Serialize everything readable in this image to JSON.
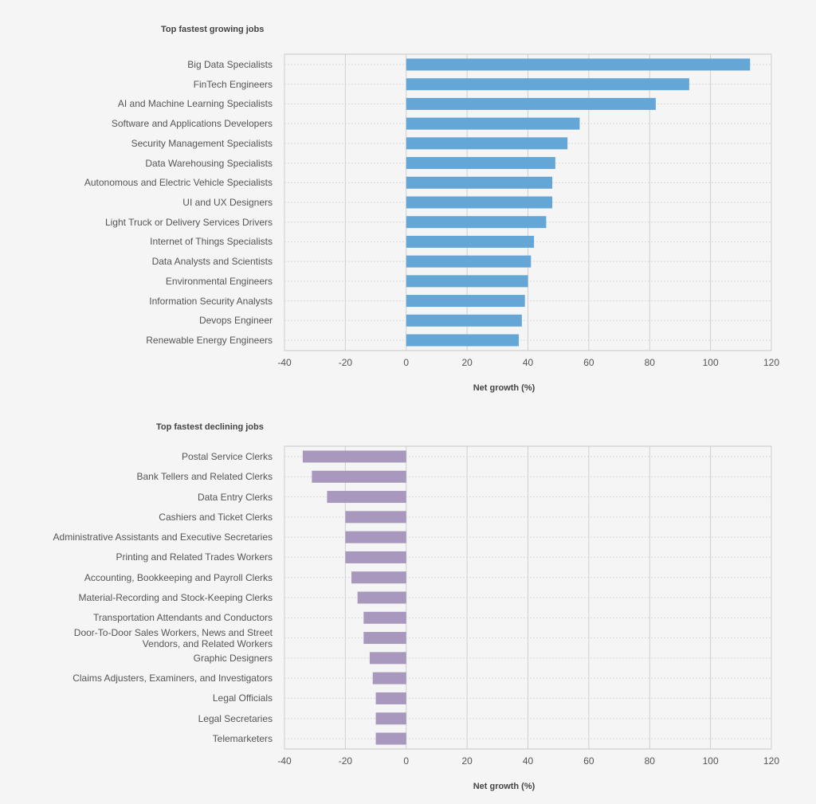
{
  "chart_data": [
    {
      "type": "barh",
      "title": "Top fastest growing jobs",
      "x_label": "Net growth (%)",
      "categories": [
        "Big Data Specialists",
        "FinTech Engineers",
        "AI and Machine Learning Specialists",
        "Software and Applications Developers",
        "Security Management Specialists",
        "Data Warehousing Specialists",
        "Autonomous and Electric Vehicle Specialists",
        "UI and UX Designers",
        "Light Truck or Delivery Services Drivers",
        "Internet of Things Specialists",
        "Data Analysts and Scientists",
        "Environmental Engineers",
        "Information Security Analysts",
        "Devops Engineer",
        "Renewable Energy Engineers"
      ],
      "values": [
        113,
        93,
        82,
        57,
        53,
        49,
        48,
        48,
        46,
        42,
        41,
        40,
        39,
        38,
        37
      ],
      "color": "#64a7d6",
      "xlim": [
        -40,
        120
      ],
      "xticks": [
        -40,
        -20,
        0,
        20,
        40,
        60,
        80,
        100,
        120
      ],
      "grid": true
    },
    {
      "type": "barh",
      "title": "Top fastest declining jobs",
      "x_label": "Net growth (%)",
      "categories": [
        "Postal Service Clerks",
        "Bank Tellers and Related Clerks",
        "Data Entry Clerks",
        "Cashiers and Ticket Clerks",
        "Administrative Assistants and Executive Secretaries",
        "Printing and Related Trades Workers",
        "Accounting, Bookkeeping and Payroll Clerks",
        "Material-Recording and Stock-Keeping Clerks",
        "Transportation Attendants and Conductors",
        "Door-To-Door Sales Workers, News and Street Vendors, and Related Workers",
        "Graphic Designers",
        "Claims Adjusters, Examiners, and Investigators",
        "Legal Officials",
        "Legal Secretaries",
        "Telemarketers"
      ],
      "values": [
        -34,
        -31,
        -26,
        -20,
        -20,
        -20,
        -18,
        -16,
        -14,
        -14,
        -12,
        -11,
        -10,
        -10,
        -10
      ],
      "color": "#a898bd",
      "xlim": [
        -40,
        120
      ],
      "xticks": [
        -40,
        -20,
        0,
        20,
        40,
        60,
        80,
        100,
        120
      ],
      "grid": true
    }
  ]
}
